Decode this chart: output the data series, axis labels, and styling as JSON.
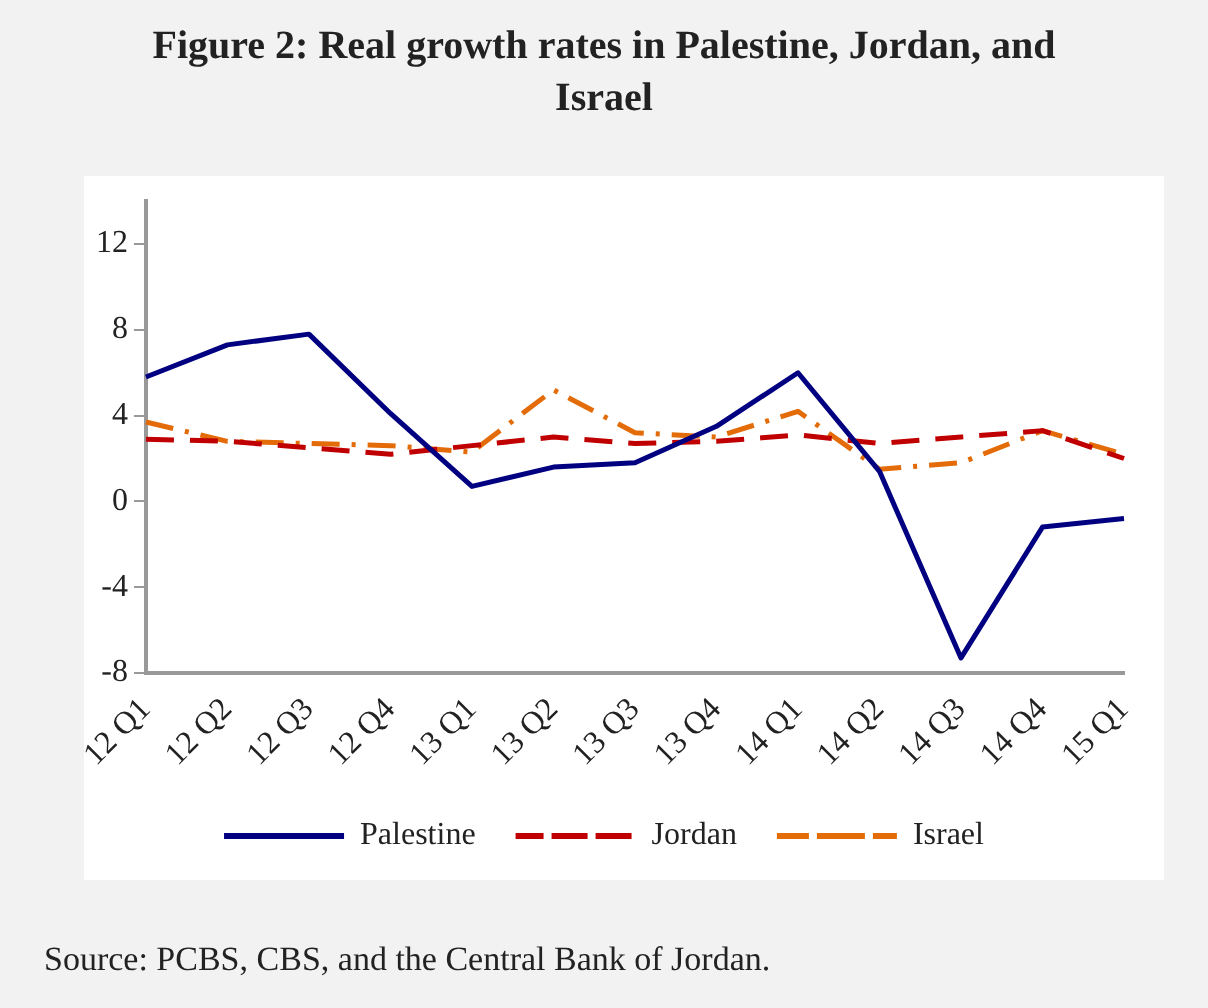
{
  "chart_data": {
    "type": "line",
    "title": "Figure 2: Real growth rates in Palestine, Jordan, and Israel",
    "categories": [
      "12 Q1",
      "12 Q2",
      "12 Q3",
      "12 Q4",
      "13 Q1",
      "13 Q2",
      "13 Q3",
      "13 Q4",
      "14 Q1",
      "14 Q2",
      "14 Q3",
      "14 Q4",
      "15 Q1"
    ],
    "series": [
      {
        "name": "Palestine",
        "color": "#000080",
        "line_style": "solid",
        "values": [
          5.8,
          7.3,
          7.8,
          4.1,
          0.7,
          1.6,
          1.8,
          3.5,
          6.0,
          1.4,
          -7.3,
          -1.2,
          -0.8
        ]
      },
      {
        "name": "Jordan",
        "color": "#c00000",
        "line_style": "dashed",
        "values": [
          2.9,
          2.8,
          2.5,
          2.2,
          2.6,
          3.0,
          2.7,
          2.8,
          3.1,
          2.7,
          3.0,
          3.3,
          2.0
        ]
      },
      {
        "name": "Israel",
        "color": "#e36c09",
        "line_style": "dashdot",
        "values": [
          3.7,
          2.8,
          2.7,
          2.6,
          2.3,
          5.2,
          3.2,
          3.0,
          4.2,
          1.5,
          1.8,
          3.3,
          2.2
        ]
      }
    ],
    "ylim": [
      -8,
      14
    ],
    "yticks": [
      -8,
      -4,
      0,
      4,
      8,
      12
    ],
    "grid": false,
    "legend": "bottom",
    "marker": "none",
    "annotations": [
      "Source: PCBS, CBS, and the Central Bank of Jordan."
    ]
  }
}
